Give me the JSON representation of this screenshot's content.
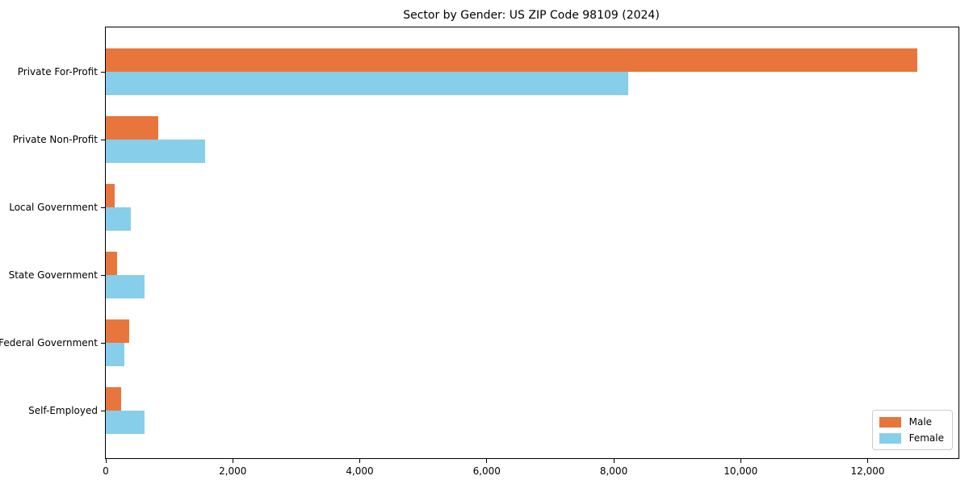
{
  "title": "Sector by Gender: US ZIP Code 98109 (2024)",
  "colors": {
    "male": "#E8763C",
    "female": "#87CEEB",
    "axis": "#000000",
    "legend_border": "#CCCCCC",
    "background": "#FFFFFF"
  },
  "chart_data": {
    "type": "bar",
    "orientation": "horizontal",
    "title": "Sector by Gender: US ZIP Code 98109 (2024)",
    "xlabel": "",
    "ylabel": "",
    "categories": [
      "Private For-Profit",
      "Private Non-Profit",
      "Local Government",
      "State Government",
      "Federal Government",
      "Self-Employed"
    ],
    "series": [
      {
        "name": "Male",
        "color": "#E8763C",
        "values": [
          12780,
          830,
          140,
          175,
          370,
          240
        ]
      },
      {
        "name": "Female",
        "color": "#87CEEB",
        "values": [
          8230,
          1560,
          390,
          610,
          290,
          610
        ]
      }
    ],
    "xlim": [
      0,
      13430
    ],
    "xticks": [
      0,
      2000,
      4000,
      6000,
      8000,
      10000,
      12000
    ],
    "xtick_labels": [
      "0",
      "2,000",
      "4,000",
      "6,000",
      "8,000",
      "10,000",
      "12,000"
    ],
    "grid": false,
    "legend": {
      "position": "lower right",
      "entries": [
        {
          "label": "Male",
          "color": "#E8763C"
        },
        {
          "label": "Female",
          "color": "#87CEEB"
        }
      ]
    }
  }
}
